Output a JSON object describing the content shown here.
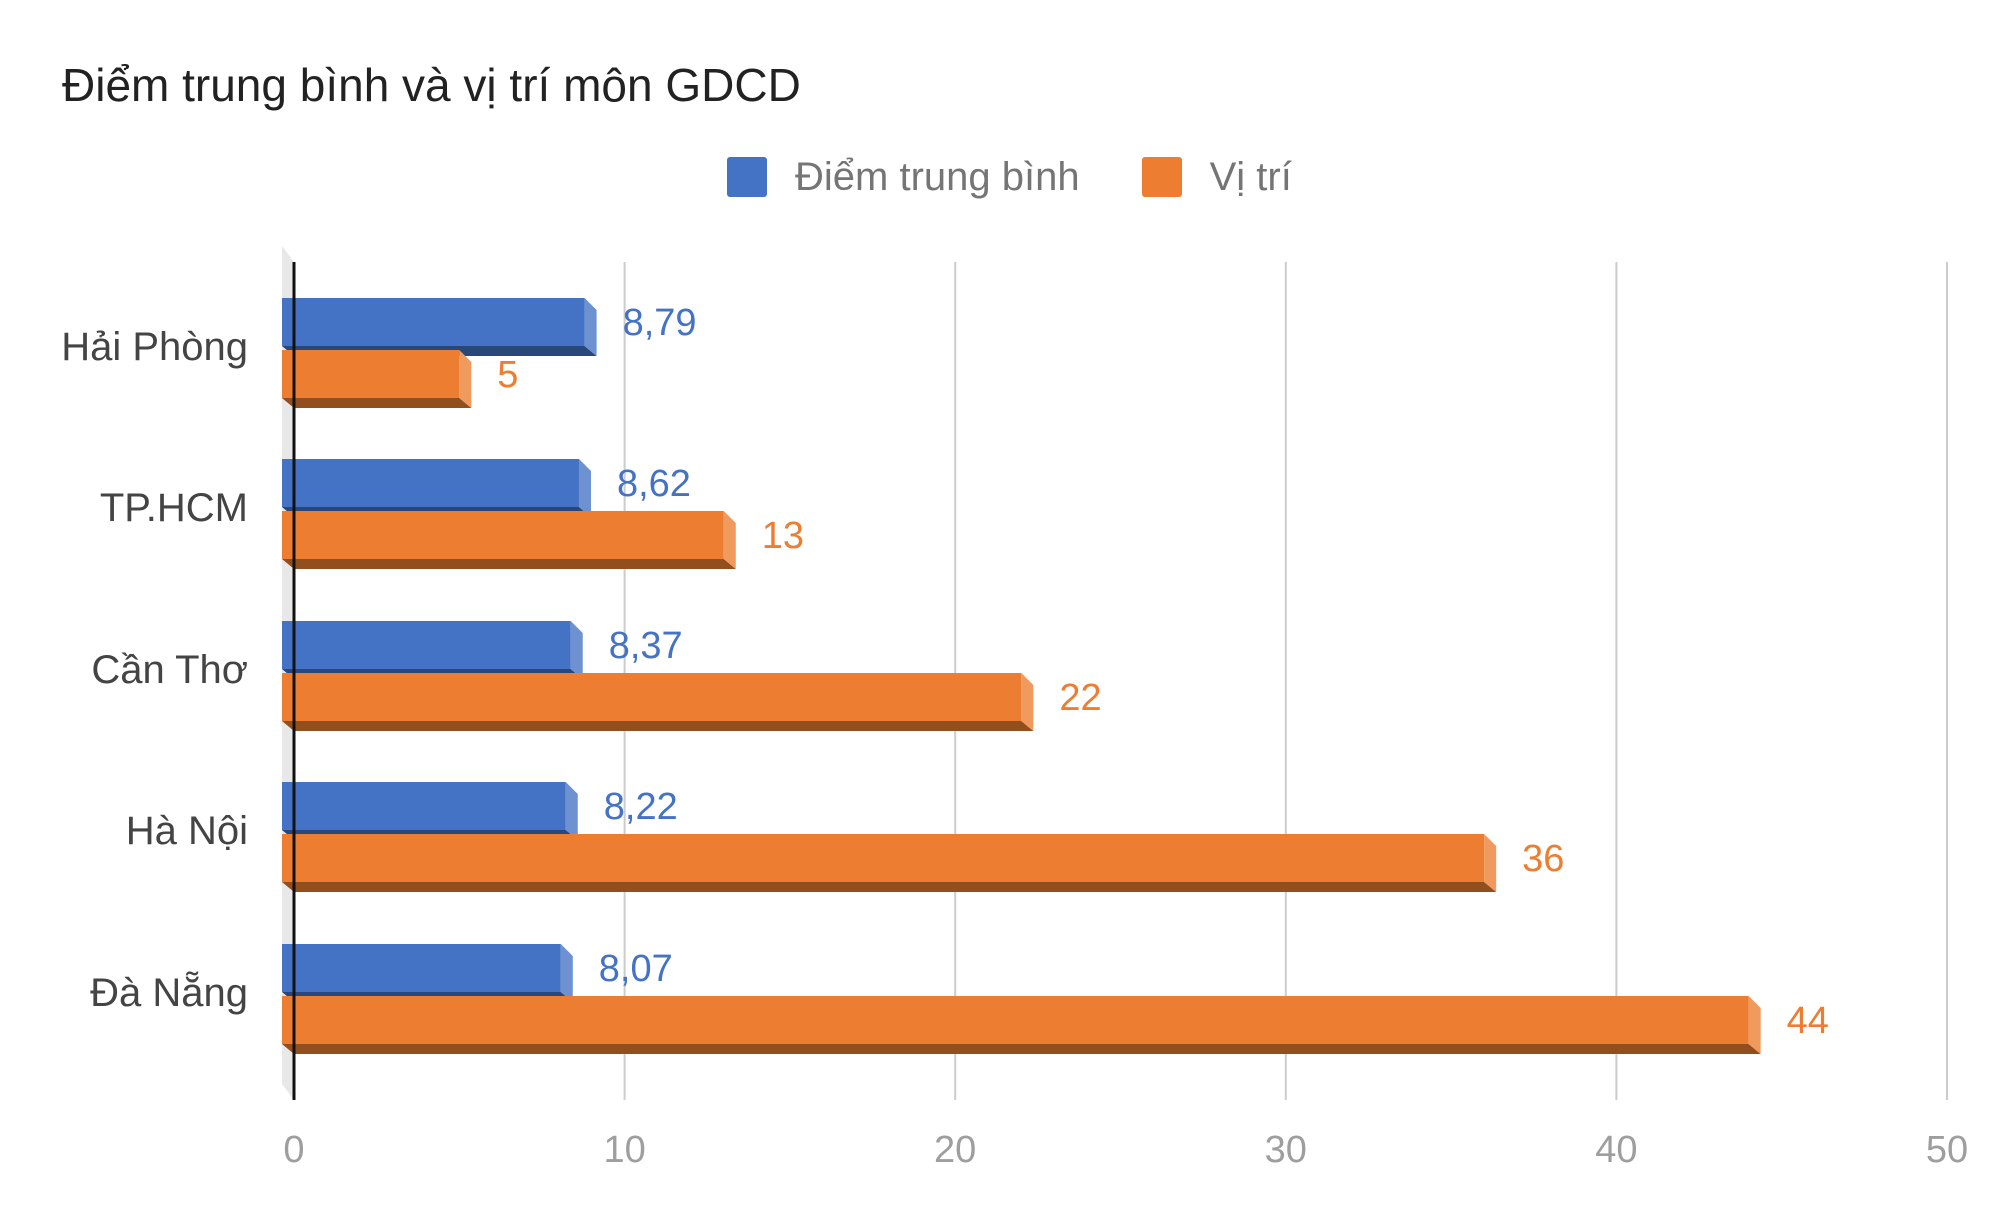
{
  "chart_data": {
    "type": "bar",
    "orientation": "horizontal",
    "title": "Điểm trung bình và vị trí môn GDCD",
    "categories": [
      "Hải Phòng",
      "TP.HCM",
      "Cần Thơ",
      "Hà Nội",
      "Đà Nẵng"
    ],
    "series": [
      {
        "name": "Điểm trung bình",
        "color": "#4472C4",
        "values": [
          8.79,
          8.62,
          8.37,
          8.22,
          8.07
        ],
        "labels": [
          "8,79",
          "8,62",
          "8,37",
          "8,22",
          "8,07"
        ]
      },
      {
        "name": "Vị trí",
        "color": "#ED7D31",
        "values": [
          5,
          13,
          22,
          36,
          44
        ],
        "labels": [
          "5",
          "13",
          "22",
          "36",
          "44"
        ]
      }
    ],
    "xlim": [
      0,
      50
    ],
    "xticks": [
      0,
      10,
      20,
      30,
      40,
      50
    ],
    "xtick_labels": [
      "0",
      "10",
      "20",
      "30",
      "40",
      "50"
    ],
    "grid": true,
    "legend_position": "top",
    "style": "3d"
  }
}
